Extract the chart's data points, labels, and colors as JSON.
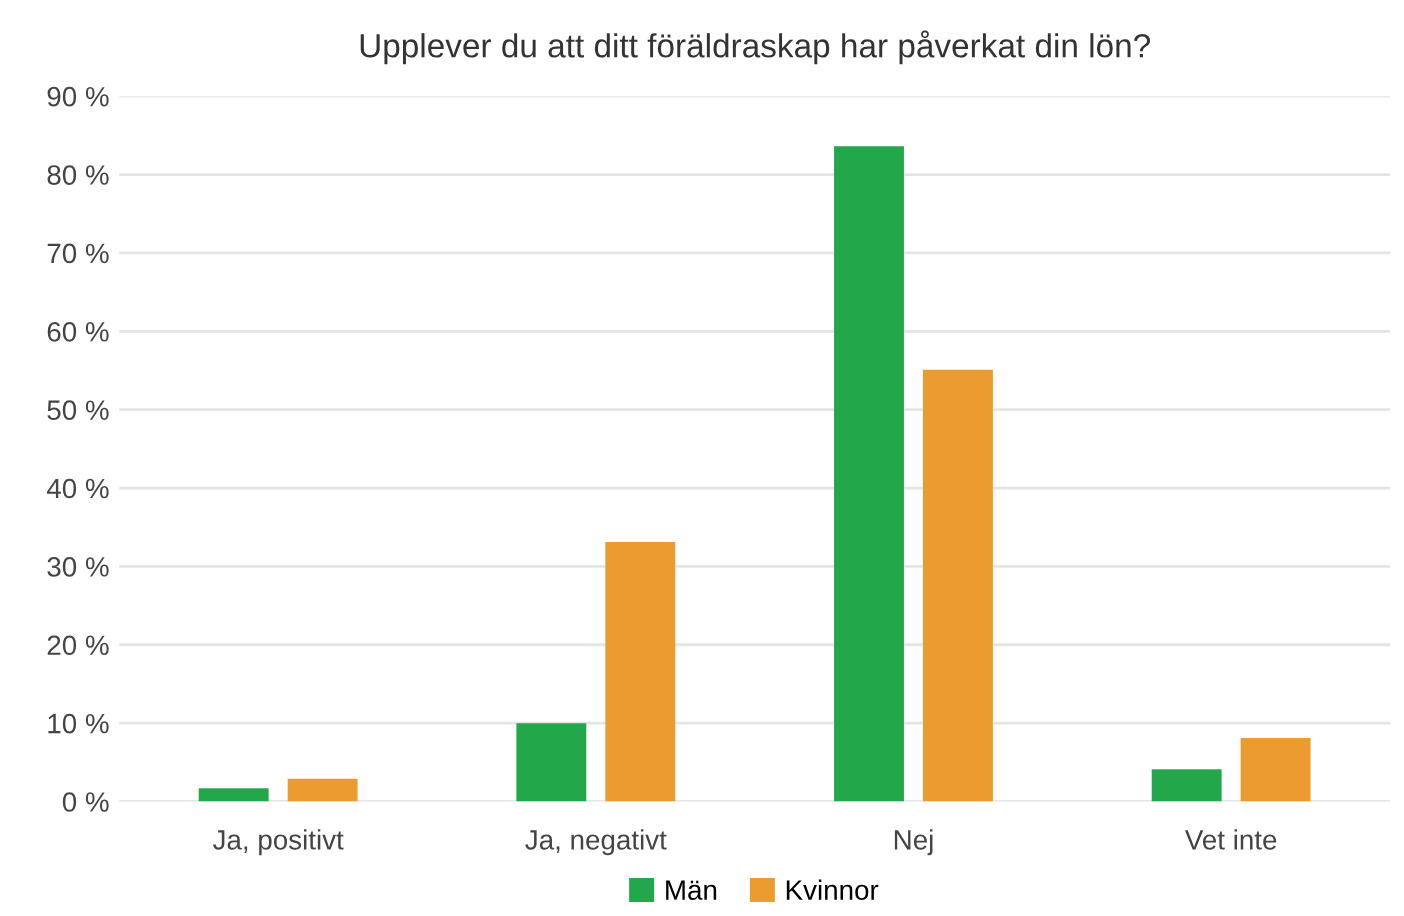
{
  "chart_data": {
    "type": "bar",
    "title": "Upplever du att ditt föräldraskap har påverkat din lön?",
    "categories": [
      "Ja, positivt",
      "Ja, negativt",
      "Nej",
      "Vet inte"
    ],
    "series": [
      {
        "name": "Män",
        "color": "#22a84a",
        "values": [
          1.7,
          10.0,
          83.6,
          4.1
        ]
      },
      {
        "name": "Kvinnor",
        "color": "#ec9b2e",
        "values": [
          2.9,
          33.1,
          55.1,
          8.1
        ]
      }
    ],
    "ylim": [
      0,
      90
    ],
    "yticks": [
      {
        "value": 0,
        "label": "0 %"
      },
      {
        "value": 10,
        "label": "10 %"
      },
      {
        "value": 20,
        "label": "20 %"
      },
      {
        "value": 30,
        "label": "30 %"
      },
      {
        "value": 40,
        "label": "40 %"
      },
      {
        "value": 50,
        "label": "50 %"
      },
      {
        "value": 60,
        "label": "60 %"
      },
      {
        "value": 70,
        "label": "70 %"
      },
      {
        "value": 80,
        "label": "80 %"
      },
      {
        "value": 90,
        "label": "90 %"
      }
    ],
    "grid": "y",
    "legend": "bottom"
  }
}
